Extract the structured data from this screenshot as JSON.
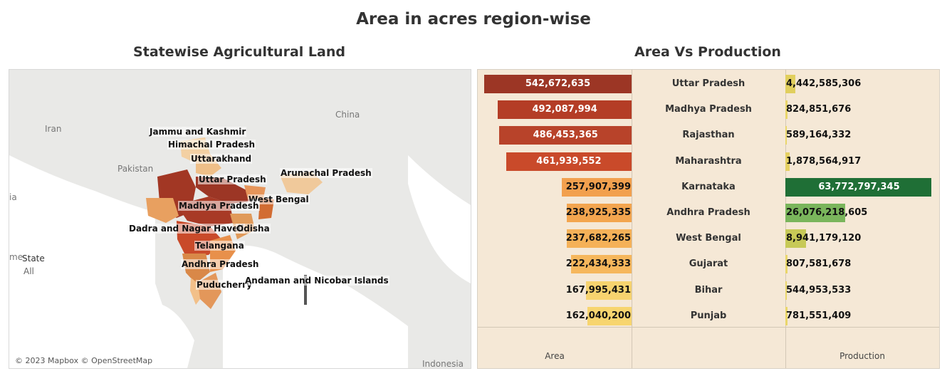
{
  "page": {
    "title": "Area in acres region-wise"
  },
  "map": {
    "subtitle": "Statewise Agricultural Land",
    "geo_labels": [
      "China",
      "Iran",
      "Pakistan",
      "Indonesia",
      "ia",
      "me"
    ],
    "state_labels": [
      "Jammu and Kashmir",
      "Himachal Pradesh",
      "Uttarakhand",
      "Arunachal Pradesh",
      "Uttar Pradesh",
      "West Bengal",
      "Madhya Pradesh",
      "Dadra and Nagar Haveli",
      "Odisha",
      "Telangana",
      "Andhra Pradesh",
      "Puducherry",
      "Andaman and Nicobar Islands"
    ],
    "legend_title": "State",
    "legend_value": "All",
    "attribution": "© 2023 Mapbox © OpenStreetMap"
  },
  "table": {
    "subtitle": "Area Vs Production",
    "area_axis_title": "Area",
    "production_axis_title": "Production"
  },
  "chart_data": {
    "type": "bar",
    "title": "Area Vs Production",
    "categories": [
      "Uttar Pradesh",
      "Madhya Pradesh",
      "Rajasthan",
      "Maharashtra",
      "Karnataka",
      "Andhra Pradesh",
      "West Bengal",
      "Gujarat",
      "Bihar",
      "Punjab"
    ],
    "series": [
      {
        "name": "Area",
        "values": [
          542672635,
          492087994,
          486453365,
          461939552,
          257907399,
          238925335,
          237682265,
          222434333,
          167995431,
          162040200
        ],
        "labels": [
          "542,672,635",
          "492,087,994",
          "486,453,365",
          "461,939,552",
          "257,907,399",
          "238,925,335",
          "237,682,265",
          "222,434,333",
          "167,995,431",
          "162,040,200"
        ],
        "colors": [
          "#9c3625",
          "#b43d26",
          "#b8432a",
          "#c94a2a",
          "#f2a04e",
          "#f3a54f",
          "#f5b158",
          "#f6b75c",
          "#f7d36f",
          "#f7d56f"
        ]
      },
      {
        "name": "Production",
        "values": [
          4442585306,
          824851676,
          589164332,
          1878564917,
          63772797345,
          26076218605,
          8941179120,
          807581678,
          544953533,
          781551409
        ],
        "labels": [
          "4,442,585,306",
          "824,851,676",
          "589,164,332",
          "1,878,564,917",
          "63,772,797,345",
          "26,076,218,605",
          "8,941,179,120",
          "807,581,678",
          "544,953,533",
          "781,551,409"
        ],
        "colors": [
          "#e1cf5e",
          "#e9d66a",
          "#e9d66a",
          "#e5d062",
          "#1f6f36",
          "#7ab55c",
          "#c7c957",
          "#e9d66a",
          "#e9d66a",
          "#e9d66a"
        ]
      }
    ]
  }
}
